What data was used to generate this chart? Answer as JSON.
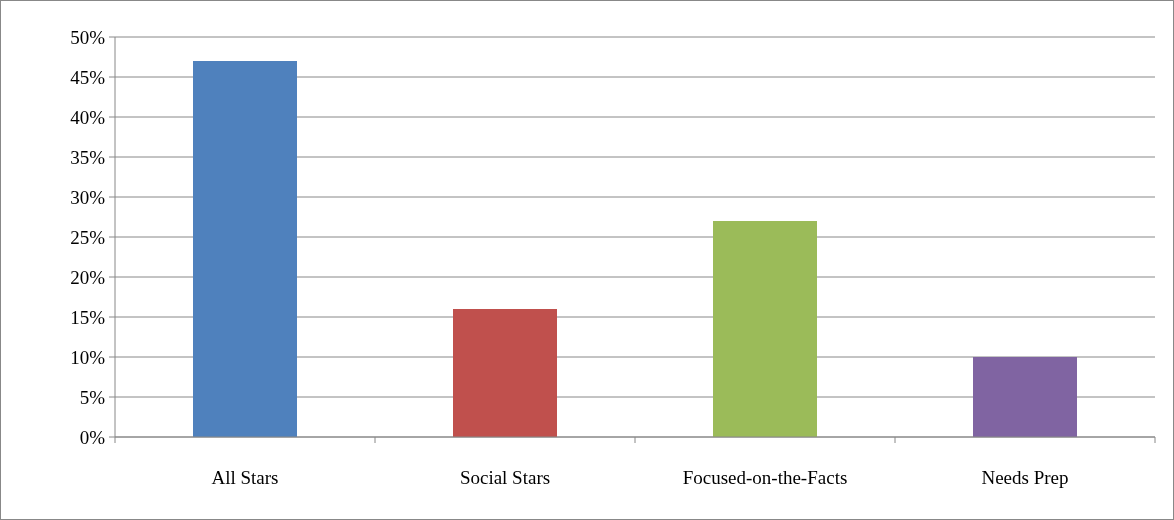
{
  "chart_data": {
    "type": "bar",
    "categories": [
      "All Stars",
      "Social Stars",
      "Focused-on-the-Facts",
      "Needs Prep"
    ],
    "values": [
      47,
      16,
      27,
      10
    ],
    "colors": [
      "#4f81bd",
      "#c0504d",
      "#9bbb59",
      "#8064a2"
    ],
    "ylim": [
      0,
      50
    ],
    "yticks": [
      {
        "value": 0,
        "label": "0%"
      },
      {
        "value": 5,
        "label": "5%"
      },
      {
        "value": 10,
        "label": "10%"
      },
      {
        "value": 15,
        "label": "15%"
      },
      {
        "value": 20,
        "label": "20%"
      },
      {
        "value": 25,
        "label": "25%"
      },
      {
        "value": 30,
        "label": "30%"
      },
      {
        "value": 35,
        "label": "35%"
      },
      {
        "value": 40,
        "label": "40%"
      },
      {
        "value": 45,
        "label": "45%"
      },
      {
        "value": 50,
        "label": "50%"
      }
    ],
    "grid": "y"
  }
}
